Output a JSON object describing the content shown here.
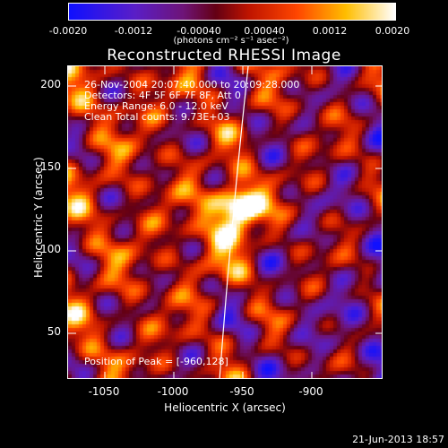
{
  "colorbar": {
    "ticks": [
      "-0.0020",
      "-0.0012",
      "-0.00040",
      "0.00040",
      "0.0012",
      "0.0020"
    ],
    "units": "(photons cm⁻² s⁻¹ asec⁻²)",
    "colors": [
      "#1010ff",
      "#6a00c8",
      "#b40040",
      "#ff2a00",
      "#ff9a00",
      "#ffffff"
    ]
  },
  "title": "Reconstructed RHESSI Image",
  "info": {
    "line1": "26-Nov-2004 20:07:40.000 to 20:09:28.000",
    "line2": "Detectors: 4F 5F 6F 7F 8F, Att 0",
    "line3": "Energy Range: 6.0 - 12.0 keV",
    "line4": "Clean     Total counts: 9.73E+03"
  },
  "peak_text": "Position of Peak = [-960,128]",
  "x_ticks": [
    "-1050",
    "-1000",
    "-950",
    "-900"
  ],
  "y_ticks": [
    "200",
    "150",
    "100",
    "50"
  ],
  "x_label": "Heliocentric X (arcsec)",
  "y_label": "Heliocentric Y (arcsec)",
  "datestamp": "21-Jun-2013 18:57"
}
